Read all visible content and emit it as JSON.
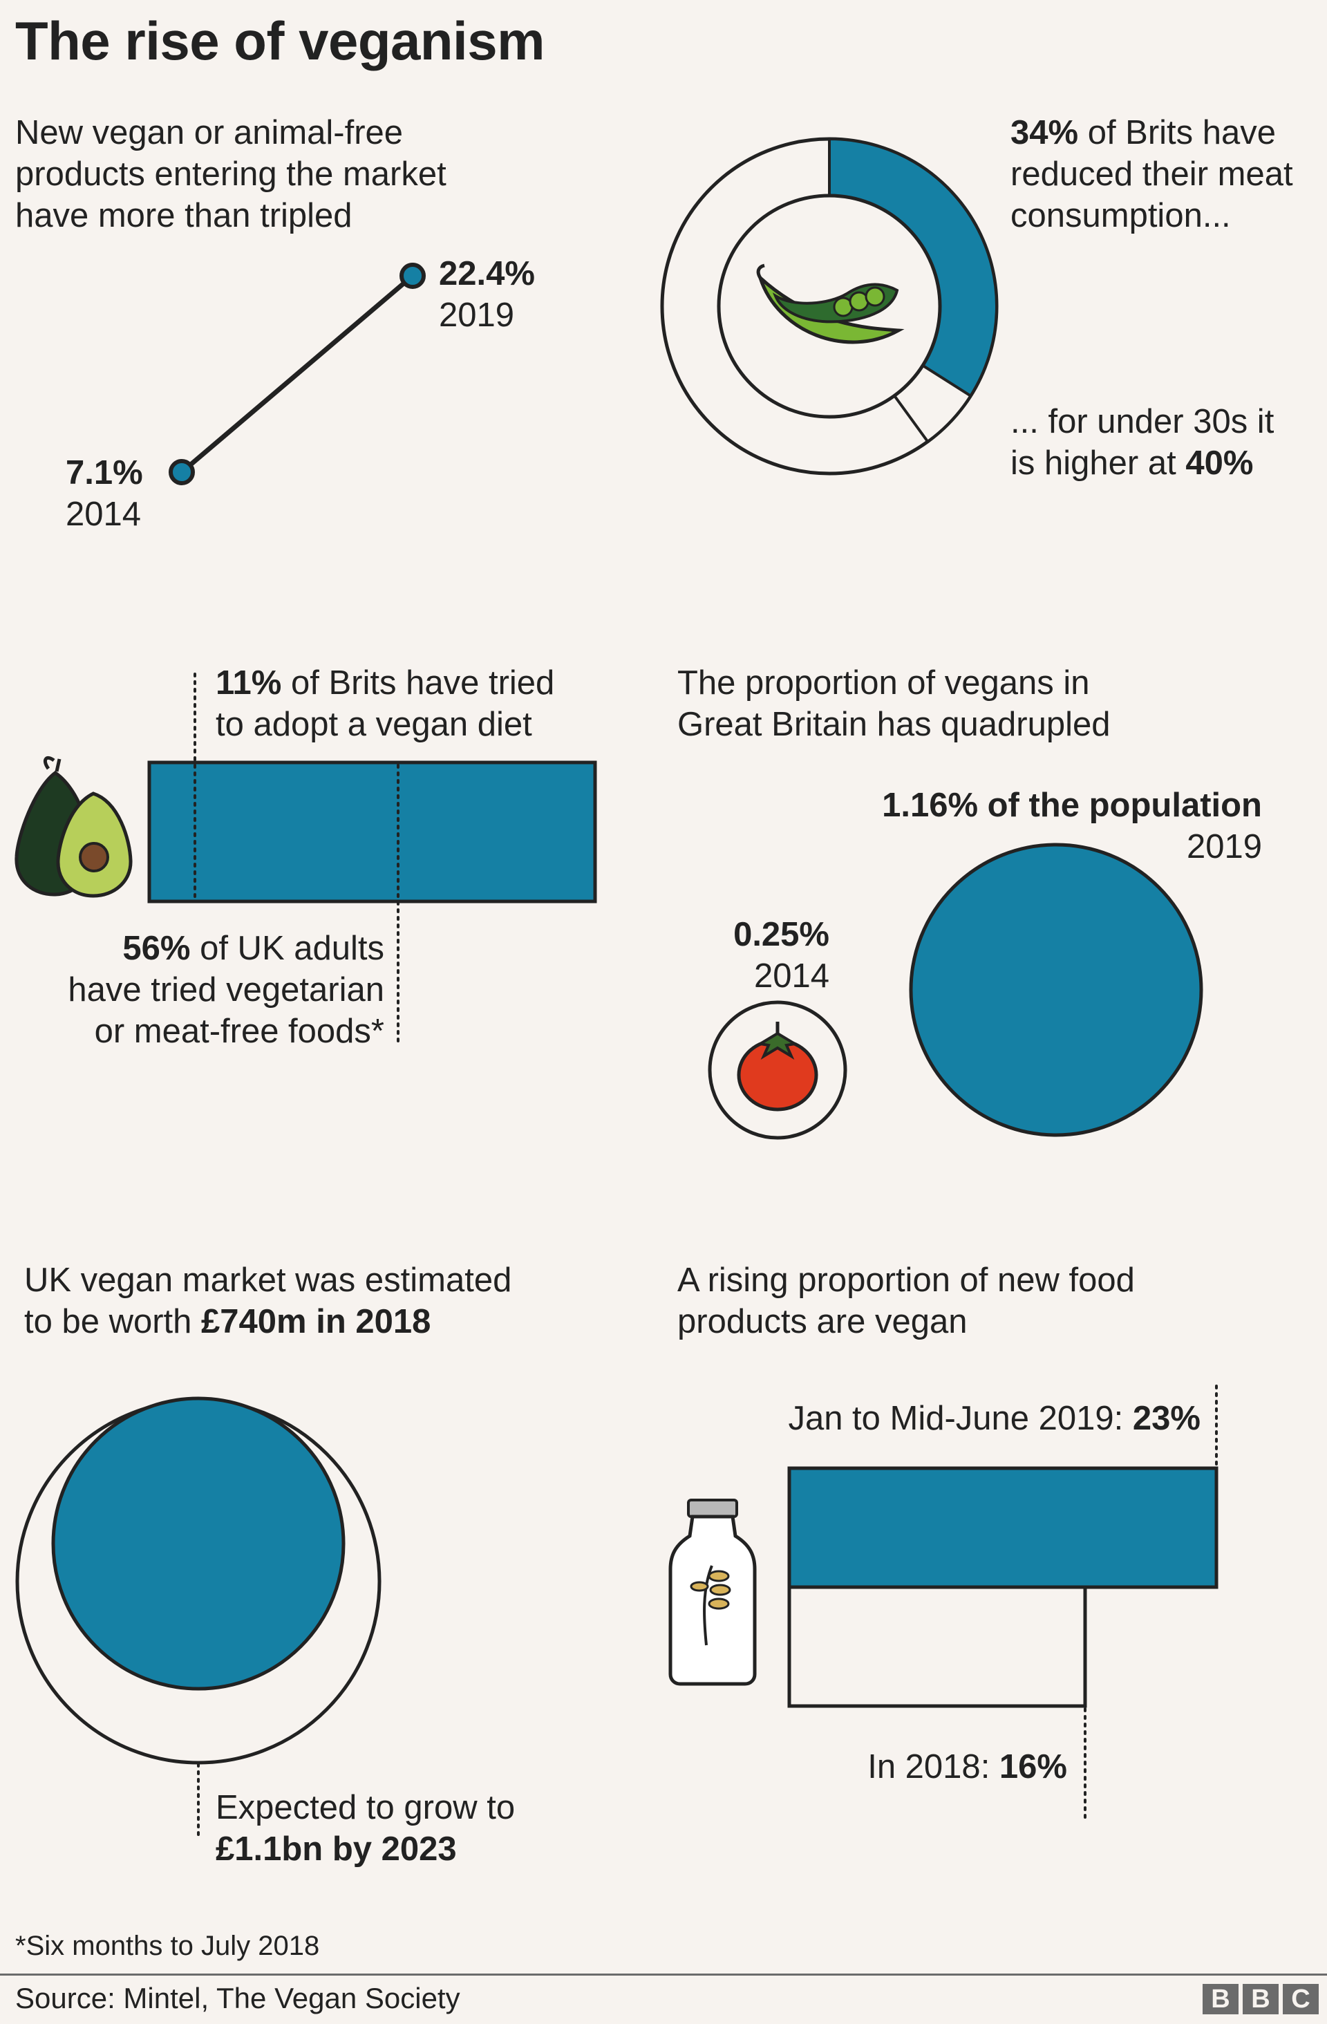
{
  "title": "The rise of veganism",
  "colors": {
    "accent": "#1580a4",
    "background": "#f7f3ef",
    "outline": "#222222",
    "tomato": "#e03a1e",
    "pea": "#7ab734",
    "avocado_dark": "#1e3a22",
    "avocado_light": "#b7cf5a"
  },
  "panel1": {
    "heading": [
      "New vegan or animal-free",
      "products entering the market",
      "have more than tripled"
    ],
    "start_value": "7.1%",
    "start_year": "2014",
    "end_value": "22.4%",
    "end_year": "2019"
  },
  "panel2": {
    "top_bold": "34%",
    "top_rest": " of Brits have",
    "top_lines": [
      "reduced their meat",
      "consumption..."
    ],
    "bottom_line1": "... for under 30s it",
    "bottom_pre": "is higher at ",
    "bottom_bold": "40%",
    "icon": "pea-pod-icon"
  },
  "panel3": {
    "top_bold": "11%",
    "top_rest": " of Brits have tried",
    "top_line2": "to adopt a vegan diet",
    "bottom_bold": "56%",
    "bottom_rest": " of UK adults",
    "bottom_line2": "have tried vegetarian",
    "bottom_line3": "or meat-free foods*",
    "icon": "avocado-icon"
  },
  "panel4": {
    "heading": [
      "The proportion of vegans in",
      "Great Britain has quadrupled"
    ],
    "big_value": "1.16% of the population",
    "big_year": "2019",
    "small_value": "0.25%",
    "small_year": "2014",
    "icon": "tomato-icon"
  },
  "panel5": {
    "heading_line1": "UK vegan market was estimated",
    "heading_pre": "to be worth ",
    "heading_bold": "£740m in 2018",
    "bottom_line1": "Expected to grow to",
    "bottom_bold": "£1.1bn by 2023"
  },
  "panel6": {
    "heading": [
      "A rising proportion of new food",
      "products are vegan"
    ],
    "top_pre": "Jan to Mid-June 2019: ",
    "top_bold": "23%",
    "bottom_pre": "In 2018: ",
    "bottom_bold": "16%",
    "icon": "oat-milk-bottle-icon"
  },
  "footnote": "*Six months to July 2018",
  "source": "Source: Mintel, The Vegan Society",
  "logo": [
    "B",
    "B",
    "C"
  ],
  "chart_data": [
    {
      "type": "line",
      "x": [
        2014,
        2019
      ],
      "values": [
        7.1,
        22.4
      ],
      "unit": "%"
    },
    {
      "type": "pie",
      "values": [
        34,
        40
      ],
      "unit": "%"
    },
    {
      "type": "bar",
      "values": [
        11,
        56
      ],
      "unit": "%"
    },
    {
      "type": "bar",
      "x": [
        2014,
        2019
      ],
      "values": [
        0.25,
        1.16
      ],
      "unit": "%"
    },
    {
      "type": "bar",
      "x": [
        2018,
        2023
      ],
      "values": [
        740,
        1100
      ],
      "unit": "£m"
    },
    {
      "type": "bar",
      "x": [
        "2018",
        "Jan to Mid-June 2019"
      ],
      "values": [
        16,
        23
      ],
      "unit": "%"
    }
  ]
}
